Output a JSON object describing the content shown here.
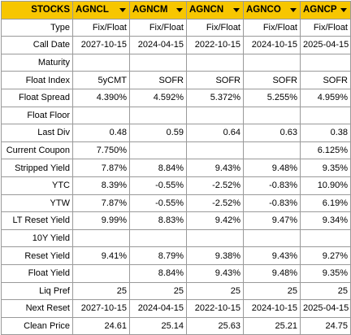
{
  "header": {
    "corner": "STOCKS",
    "columns": [
      "AGNCL",
      "AGNCM",
      "AGNCN",
      "AGNCO",
      "AGNCP"
    ],
    "dropdown_icon": "chevron-down-icon",
    "header_color": "#f7c600"
  },
  "rows": [
    {
      "label": "Type",
      "values": [
        "Fix/Float",
        "Fix/Float",
        "Fix/Float",
        "Fix/Float",
        "Fix/Float"
      ]
    },
    {
      "label": "Call Date",
      "values": [
        "2027-10-15",
        "2024-04-15",
        "2022-10-15",
        "2024-10-15",
        "2025-04-15"
      ]
    },
    {
      "label": "Maturity",
      "values": [
        "",
        "",
        "",
        "",
        ""
      ]
    },
    {
      "label": "Float Index",
      "values": [
        "5yCMT",
        "SOFR",
        "SOFR",
        "SOFR",
        "SOFR"
      ]
    },
    {
      "label": "Float Spread",
      "values": [
        "4.390%",
        "4.592%",
        "5.372%",
        "5.255%",
        "4.959%"
      ]
    },
    {
      "label": "Float Floor",
      "values": [
        "",
        "",
        "",
        "",
        ""
      ]
    },
    {
      "label": "Last Div",
      "values": [
        "0.48",
        "0.59",
        "0.64",
        "0.63",
        "0.38"
      ]
    },
    {
      "label": "Current Coupon",
      "values": [
        "7.750%",
        "",
        "",
        "",
        "6.125%"
      ]
    },
    {
      "label": "Stripped Yield",
      "values": [
        "7.87%",
        "8.84%",
        "9.43%",
        "9.48%",
        "9.35%"
      ]
    },
    {
      "label": "YTC",
      "values": [
        "8.39%",
        "-0.55%",
        "-2.52%",
        "-0.83%",
        "10.90%"
      ]
    },
    {
      "label": "YTW",
      "values": [
        "7.87%",
        "-0.55%",
        "-2.52%",
        "-0.83%",
        "6.19%"
      ]
    },
    {
      "label": "LT Reset Yield",
      "values": [
        "9.99%",
        "8.83%",
        "9.42%",
        "9.47%",
        "9.34%"
      ]
    },
    {
      "label": "10Y Yield",
      "values": [
        "",
        "",
        "",
        "",
        ""
      ]
    },
    {
      "label": "Reset Yield",
      "values": [
        "9.41%",
        "8.79%",
        "9.38%",
        "9.43%",
        "9.27%"
      ]
    },
    {
      "label": "Float Yield",
      "values": [
        "",
        "8.84%",
        "9.43%",
        "9.48%",
        "9.35%"
      ]
    },
    {
      "label": "Liq Pref",
      "values": [
        "25",
        "25",
        "25",
        "25",
        "25"
      ]
    },
    {
      "label": "Next Reset",
      "values": [
        "2027-10-15",
        "2024-04-15",
        "2022-10-15",
        "2024-10-15",
        "2025-04-15"
      ]
    },
    {
      "label": "Clean Price",
      "values": [
        "24.61",
        "25.14",
        "25.63",
        "25.21",
        "24.75"
      ]
    }
  ]
}
